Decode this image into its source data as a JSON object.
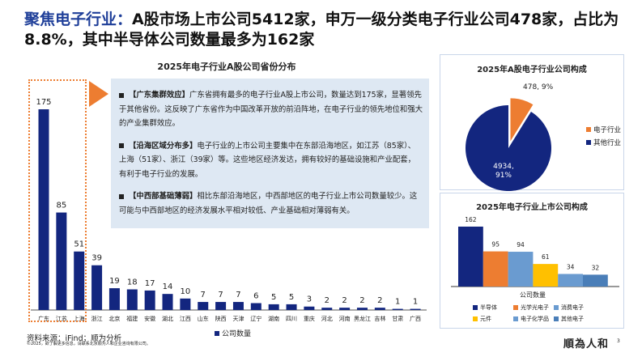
{
  "header": {
    "title_highlight": "聚焦电子行业：",
    "title_rest": "A股市场上市公司5412家，申万一级分类电子行业公司478家，占比为8.8%，其中半导体公司数量最多为162家"
  },
  "chart_data": [
    {
      "type": "bar",
      "title": "2025年电子行业A股公司省份分布",
      "categories": [
        "广东",
        "江苏",
        "上海",
        "浙江",
        "北京",
        "福建",
        "安徽",
        "湖北",
        "江西",
        "山东",
        "陕西",
        "天津",
        "辽宁",
        "湖南",
        "四川",
        "重庆",
        "河北",
        "河南",
        "黑龙江",
        "吉林",
        "甘肃",
        "广西"
      ],
      "series": [
        {
          "name": "公司数量",
          "values": [
            175,
            85,
            51,
            39,
            19,
            18,
            17,
            14,
            10,
            7,
            7,
            7,
            6,
            5,
            5,
            3,
            2,
            2,
            2,
            2,
            1,
            1
          ]
        }
      ],
      "color": "#13267f",
      "highlight_color": "#ed7d31"
    },
    {
      "type": "pie",
      "title": "2025年A股电子行业公司构成",
      "slices": [
        {
          "name": "电子行业",
          "value": 478,
          "label": "478, 9%",
          "color": "#ed7d31"
        },
        {
          "name": "其他行业",
          "value": 4934,
          "label": "4934,\n91%",
          "color": "#13267f"
        }
      ]
    },
    {
      "type": "bar",
      "title": "2025年电子行业上市公司构成",
      "xlabel": "公司数量",
      "series": [
        {
          "name": "半导体",
          "value": 162,
          "color": "#13267f"
        },
        {
          "name": "光学光电子",
          "value": 95,
          "color": "#ed7d31"
        },
        {
          "name": "消费电子",
          "value": 94,
          "color": "#6a9bd0"
        },
        {
          "name": "元件",
          "value": 61,
          "color": "#ffc000"
        },
        {
          "name": "电子化学品",
          "value": 34,
          "color": "#6a9bd0"
        },
        {
          "name": "其他电子",
          "value": 32,
          "color": "#4a7eb8"
        }
      ]
    }
  ],
  "callout": [
    {
      "tag": "【广东集群效应】",
      "text": "广东省拥有最多的电子行业A股上市公司，数量达到175家，显著领先于其他省份。这反映了广东省作为中国改革开放的前沿阵地，在电子行业的领先地位和强大的产业集群效应。"
    },
    {
      "tag": "【沿海区域分布多】",
      "text": "电子行业的上市公司主要集中在东部沿海地区，如江苏（85家）、上海（51家）、浙江（39家）等。这些地区经济发达，拥有较好的基础设施和产业配套，有利于电子行业的发展。"
    },
    {
      "tag": "【中西部基础薄弱】",
      "text": "相比东部沿海地区，中西部地区的电子行业上市公司数量较少。这可能与中西部地区的经济发展水平相对较低、产业基础相对薄弱有关。"
    }
  ],
  "footer": {
    "source": "资料来源：iFind；顺为分析",
    "copyright": "©2025，欲了解更多信息，请联系北京顺为人和企业咨询有限公司。",
    "logo": "順為人和",
    "page": "3"
  }
}
